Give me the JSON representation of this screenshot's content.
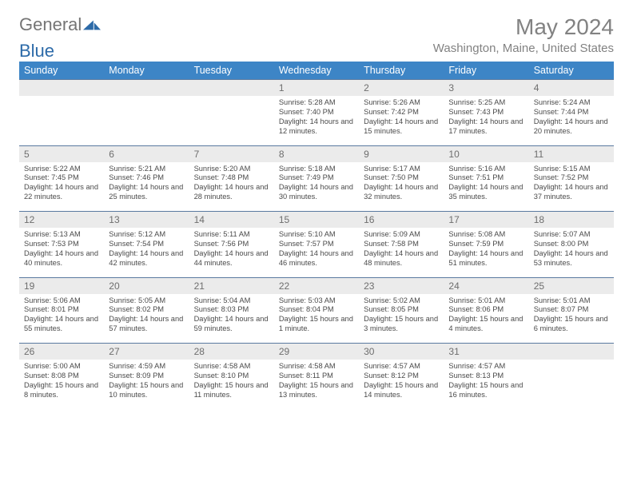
{
  "brand": {
    "prefix": "General",
    "suffix": "Blue"
  },
  "title": "May 2024",
  "subtitle": "Washington, Maine, United States",
  "colors": {
    "header_bg": "#3d85c6",
    "header_text": "#ffffff",
    "daynum_bg": "#ebebeb",
    "daynum_text": "#6e6e6e",
    "detail_text": "#4a4a4a",
    "title_text": "#828282",
    "rule": "#5a7aa0"
  },
  "days_of_week": [
    "Sunday",
    "Monday",
    "Tuesday",
    "Wednesday",
    "Thursday",
    "Friday",
    "Saturday"
  ],
  "weeks": [
    [
      null,
      null,
      null,
      {
        "n": "1",
        "sr": "5:28 AM",
        "ss": "7:40 PM",
        "dl": "14 hours and 12 minutes."
      },
      {
        "n": "2",
        "sr": "5:26 AM",
        "ss": "7:42 PM",
        "dl": "14 hours and 15 minutes."
      },
      {
        "n": "3",
        "sr": "5:25 AM",
        "ss": "7:43 PM",
        "dl": "14 hours and 17 minutes."
      },
      {
        "n": "4",
        "sr": "5:24 AM",
        "ss": "7:44 PM",
        "dl": "14 hours and 20 minutes."
      }
    ],
    [
      {
        "n": "5",
        "sr": "5:22 AM",
        "ss": "7:45 PM",
        "dl": "14 hours and 22 minutes."
      },
      {
        "n": "6",
        "sr": "5:21 AM",
        "ss": "7:46 PM",
        "dl": "14 hours and 25 minutes."
      },
      {
        "n": "7",
        "sr": "5:20 AM",
        "ss": "7:48 PM",
        "dl": "14 hours and 28 minutes."
      },
      {
        "n": "8",
        "sr": "5:18 AM",
        "ss": "7:49 PM",
        "dl": "14 hours and 30 minutes."
      },
      {
        "n": "9",
        "sr": "5:17 AM",
        "ss": "7:50 PM",
        "dl": "14 hours and 32 minutes."
      },
      {
        "n": "10",
        "sr": "5:16 AM",
        "ss": "7:51 PM",
        "dl": "14 hours and 35 minutes."
      },
      {
        "n": "11",
        "sr": "5:15 AM",
        "ss": "7:52 PM",
        "dl": "14 hours and 37 minutes."
      }
    ],
    [
      {
        "n": "12",
        "sr": "5:13 AM",
        "ss": "7:53 PM",
        "dl": "14 hours and 40 minutes."
      },
      {
        "n": "13",
        "sr": "5:12 AM",
        "ss": "7:54 PM",
        "dl": "14 hours and 42 minutes."
      },
      {
        "n": "14",
        "sr": "5:11 AM",
        "ss": "7:56 PM",
        "dl": "14 hours and 44 minutes."
      },
      {
        "n": "15",
        "sr": "5:10 AM",
        "ss": "7:57 PM",
        "dl": "14 hours and 46 minutes."
      },
      {
        "n": "16",
        "sr": "5:09 AM",
        "ss": "7:58 PM",
        "dl": "14 hours and 48 minutes."
      },
      {
        "n": "17",
        "sr": "5:08 AM",
        "ss": "7:59 PM",
        "dl": "14 hours and 51 minutes."
      },
      {
        "n": "18",
        "sr": "5:07 AM",
        "ss": "8:00 PM",
        "dl": "14 hours and 53 minutes."
      }
    ],
    [
      {
        "n": "19",
        "sr": "5:06 AM",
        "ss": "8:01 PM",
        "dl": "14 hours and 55 minutes."
      },
      {
        "n": "20",
        "sr": "5:05 AM",
        "ss": "8:02 PM",
        "dl": "14 hours and 57 minutes."
      },
      {
        "n": "21",
        "sr": "5:04 AM",
        "ss": "8:03 PM",
        "dl": "14 hours and 59 minutes."
      },
      {
        "n": "22",
        "sr": "5:03 AM",
        "ss": "8:04 PM",
        "dl": "15 hours and 1 minute."
      },
      {
        "n": "23",
        "sr": "5:02 AM",
        "ss": "8:05 PM",
        "dl": "15 hours and 3 minutes."
      },
      {
        "n": "24",
        "sr": "5:01 AM",
        "ss": "8:06 PM",
        "dl": "15 hours and 4 minutes."
      },
      {
        "n": "25",
        "sr": "5:01 AM",
        "ss": "8:07 PM",
        "dl": "15 hours and 6 minutes."
      }
    ],
    [
      {
        "n": "26",
        "sr": "5:00 AM",
        "ss": "8:08 PM",
        "dl": "15 hours and 8 minutes."
      },
      {
        "n": "27",
        "sr": "4:59 AM",
        "ss": "8:09 PM",
        "dl": "15 hours and 10 minutes."
      },
      {
        "n": "28",
        "sr": "4:58 AM",
        "ss": "8:10 PM",
        "dl": "15 hours and 11 minutes."
      },
      {
        "n": "29",
        "sr": "4:58 AM",
        "ss": "8:11 PM",
        "dl": "15 hours and 13 minutes."
      },
      {
        "n": "30",
        "sr": "4:57 AM",
        "ss": "8:12 PM",
        "dl": "15 hours and 14 minutes."
      },
      {
        "n": "31",
        "sr": "4:57 AM",
        "ss": "8:13 PM",
        "dl": "15 hours and 16 minutes."
      },
      null
    ]
  ],
  "labels": {
    "sunrise": "Sunrise:",
    "sunset": "Sunset:",
    "daylight": "Daylight:"
  }
}
